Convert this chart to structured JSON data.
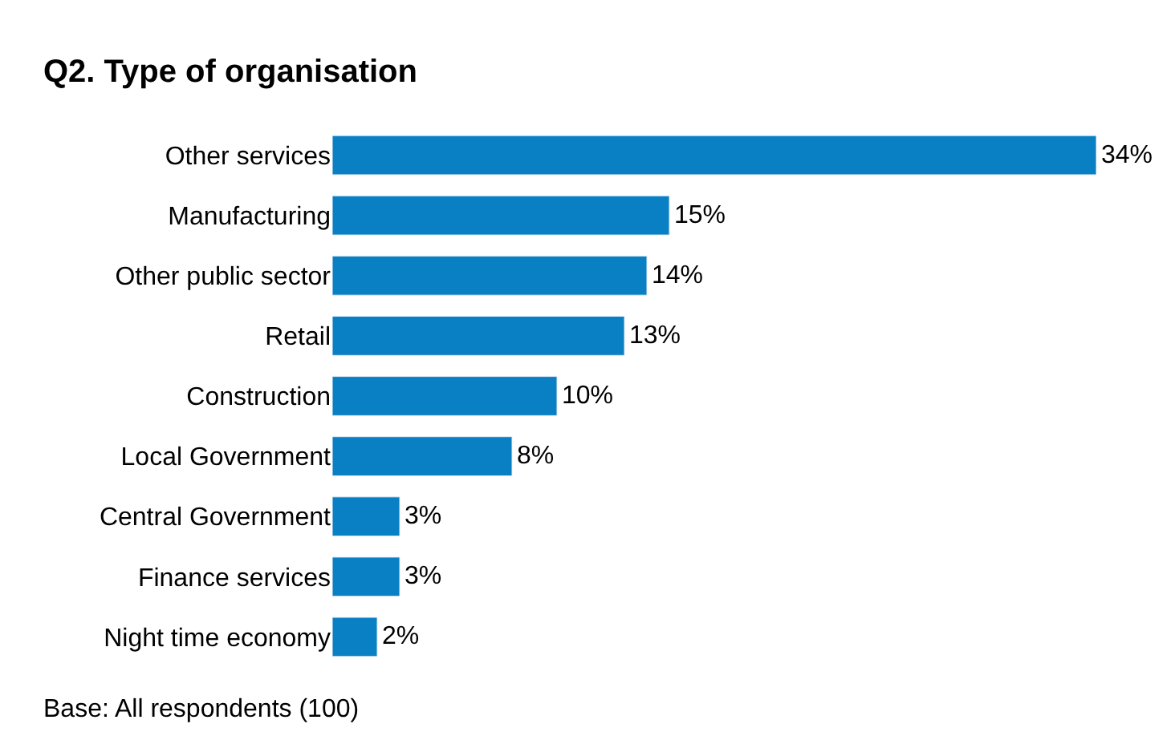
{
  "chart_data": {
    "type": "bar",
    "orientation": "horizontal",
    "title": "Q2. Type of organisation",
    "categories": [
      "Other services",
      "Manufacturing",
      "Other public sector",
      "Retail",
      "Construction",
      "Local Government",
      "Central Government",
      "Finance services",
      "Night time economy"
    ],
    "values": [
      34,
      15,
      14,
      13,
      10,
      8,
      3,
      3,
      2
    ],
    "value_labels": [
      "34%",
      "15%",
      "14%",
      "13%",
      "10%",
      "8%",
      "3%",
      "3%",
      "2%"
    ],
    "color": "#0a80c4",
    "annotations": [
      "Base: All respondents (100)"
    ]
  }
}
